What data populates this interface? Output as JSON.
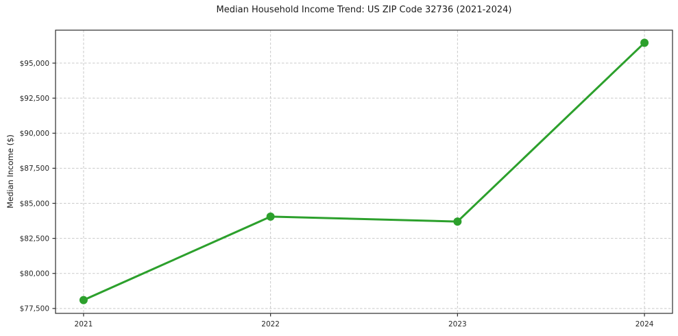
{
  "chart_data": {
    "type": "line",
    "title": "Median Household Income Trend: US ZIP Code 32736 (2021-2024)",
    "xlabel": "",
    "ylabel": "Median Income ($)",
    "x": [
      2021,
      2022,
      2023,
      2024
    ],
    "values": [
      78100,
      84050,
      83700,
      96450
    ],
    "xlim": [
      2020.85,
      2024.15
    ],
    "ylim": [
      77150,
      97350
    ],
    "xticks": [
      2021,
      2022,
      2023,
      2024
    ],
    "xtick_labels": [
      "2021",
      "2022",
      "2023",
      "2024"
    ],
    "yticks": [
      77500,
      80000,
      82500,
      85000,
      87500,
      90000,
      92500,
      95000
    ],
    "ytick_labels": [
      "$77,500",
      "$80,000",
      "$82,500",
      "$85,000",
      "$87,500",
      "$90,000",
      "$92,500",
      "$95,000"
    ],
    "grid": true,
    "legend": "none",
    "line_color": "#2ca02c",
    "marker_color": "#2ca02c",
    "grid_color": "#c9c9c9",
    "spine_color": "#2b2b2b",
    "tick_color": "#2b2b2b"
  }
}
